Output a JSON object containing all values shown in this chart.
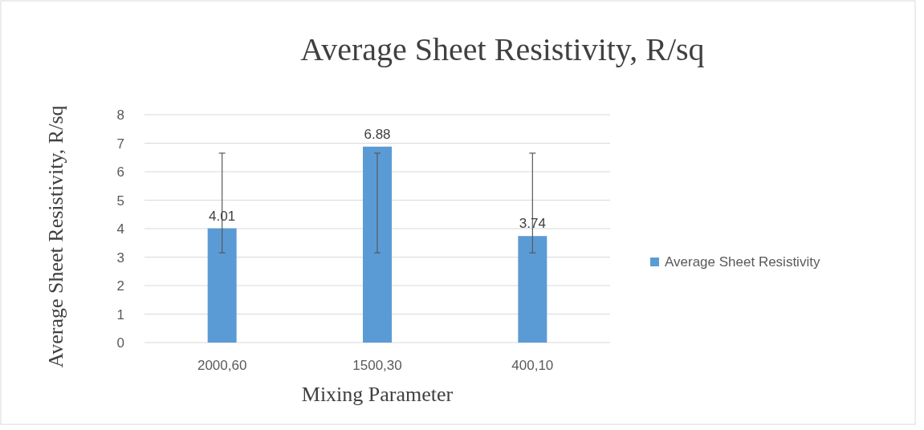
{
  "chart_data": {
    "type": "bar",
    "title": "Average Sheet Resistivity, R/sq",
    "xlabel": "Mixing Parameter",
    "ylabel": "Average Sheet Resistivity, R/sq",
    "categories": [
      "2000,60",
      "1500,30",
      "400,10"
    ],
    "series": [
      {
        "name": "Average Sheet Resistivity",
        "color": "#5b9bd5",
        "values": [
          4.01,
          6.88,
          3.74
        ],
        "errors": [
          [
            3.15,
            6.65
          ],
          [
            3.15,
            6.65
          ],
          [
            3.15,
            6.65
          ]
        ]
      }
    ],
    "ylim": [
      0,
      8
    ],
    "yticks": [
      0,
      1,
      2,
      3,
      4,
      5,
      6,
      7,
      8
    ],
    "grid": "y",
    "legend": "right",
    "data_labels": true
  }
}
